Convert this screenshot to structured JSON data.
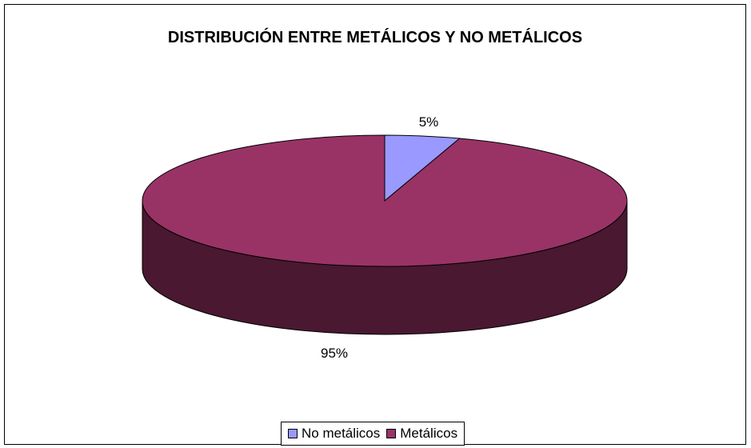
{
  "chart_data": {
    "type": "pie",
    "title": "DISTRIBUCIÓN ENTRE METÁLICOS Y NO METÁLICOS",
    "categories": [
      "No metálicos",
      "Metálicos"
    ],
    "values": [
      5,
      95
    ],
    "labels": [
      "5%",
      "95%"
    ],
    "colors": [
      "#9999ff",
      "#993366"
    ],
    "side_colors": [
      "#4b4b80",
      "#4a1830"
    ],
    "style": "3d",
    "legend_position": "bottom"
  }
}
